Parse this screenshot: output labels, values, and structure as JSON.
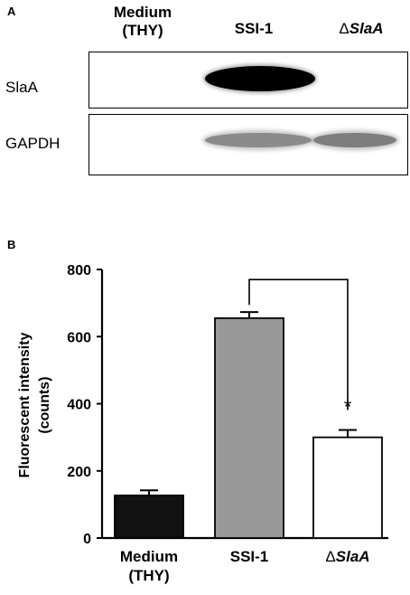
{
  "panel_a": {
    "label": "A",
    "lanes": [
      {
        "line1": "Medium",
        "line2": "(THY)"
      },
      {
        "line1": "SSI-1",
        "line2": ""
      },
      {
        "prefix": "Δ",
        "name": "SlaA"
      }
    ],
    "rows": [
      {
        "label": "SlaA",
        "band_intensity": [
          0.0,
          1.0,
          0.05
        ]
      },
      {
        "label": "GAPDH",
        "band_intensity": [
          0.0,
          0.55,
          0.6
        ]
      }
    ]
  },
  "panel_b": {
    "label": "B"
  },
  "chart_data": {
    "type": "bar",
    "categories": [
      "Medium (THY)",
      "SSI-1",
      "ΔSlaA"
    ],
    "category_lines": [
      [
        "Medium",
        "(THY)"
      ],
      [
        "SSI-1"
      ],
      [
        "Δ",
        "SlaA"
      ]
    ],
    "values": [
      127,
      655,
      300
    ],
    "errors": [
      15,
      18,
      22
    ],
    "bar_colors": [
      "#111111",
      "#999999",
      "#ffffff"
    ],
    "ylabel_lines": [
      "Fluorescent intensity",
      "(counts)"
    ],
    "ylim": [
      0,
      800
    ],
    "yticks": [
      0,
      200,
      400,
      600,
      800
    ],
    "significance": {
      "from": 1,
      "to": 2,
      "marker": "*"
    },
    "grid": false
  }
}
